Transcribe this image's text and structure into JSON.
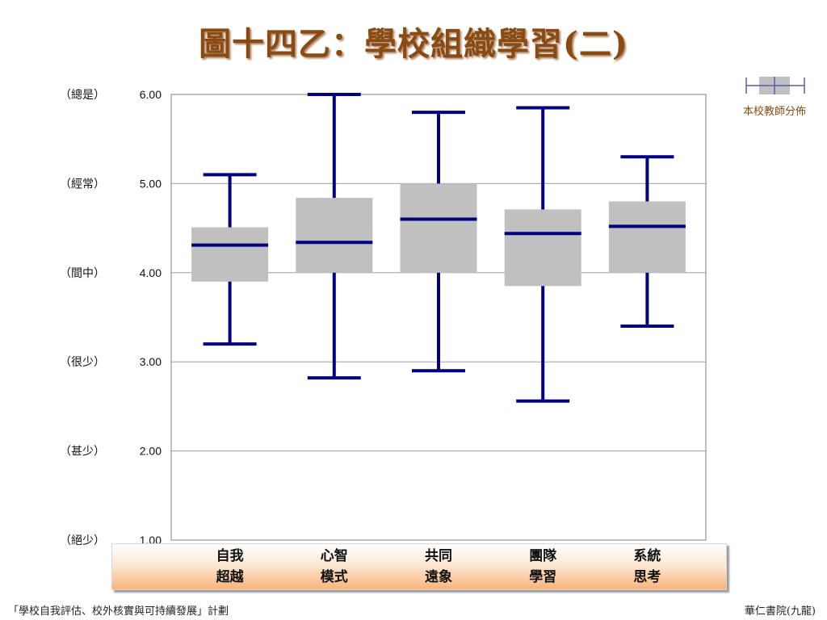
{
  "title": "圖十四乙：學校組織學習(二)",
  "legend": {
    "label": "本校教師分佈"
  },
  "footer": {
    "left": "「學校自我評估、校外核實與可持續發展」計劃",
    "right": "華仁書院(九龍)"
  },
  "colors": {
    "box_fill": "#c0c0c0",
    "whisker": "#000080",
    "title": "#8a4a14"
  },
  "chart_data": {
    "type": "box",
    "title": "圖十四乙：學校組織學習(二)",
    "categories": [
      "自我\n超越",
      "心智\n模式",
      "共同\n遠象",
      "團隊\n學習",
      "系統\n思考"
    ],
    "y_ticks": [
      "6.00",
      "5.00",
      "4.00",
      "3.00",
      "2.00",
      "1.00"
    ],
    "y_tick_values": [
      6,
      5,
      4,
      3,
      2,
      1
    ],
    "y_scale_labels": [
      "（總是）",
      "（經常）",
      "（間中）",
      "（很少）",
      "（甚少）",
      "（絕少）"
    ],
    "ylim": [
      1,
      6
    ],
    "grid": true,
    "legend_position": "top-right",
    "series": [
      {
        "name": "本校教師分佈",
        "boxes": [
          {
            "min": 3.2,
            "q1": 3.9,
            "median": 4.31,
            "q3": 4.51,
            "max": 5.1
          },
          {
            "min": 2.82,
            "q1": 4.0,
            "median": 4.34,
            "q3": 4.84,
            "max": 6.0
          },
          {
            "min": 2.9,
            "q1": 4.0,
            "median": 4.6,
            "q3": 5.0,
            "max": 5.8
          },
          {
            "min": 2.56,
            "q1": 3.85,
            "median": 4.44,
            "q3": 4.71,
            "max": 5.85
          },
          {
            "min": 3.4,
            "q1": 4.0,
            "median": 4.52,
            "q3": 4.8,
            "max": 5.3
          }
        ]
      }
    ]
  }
}
